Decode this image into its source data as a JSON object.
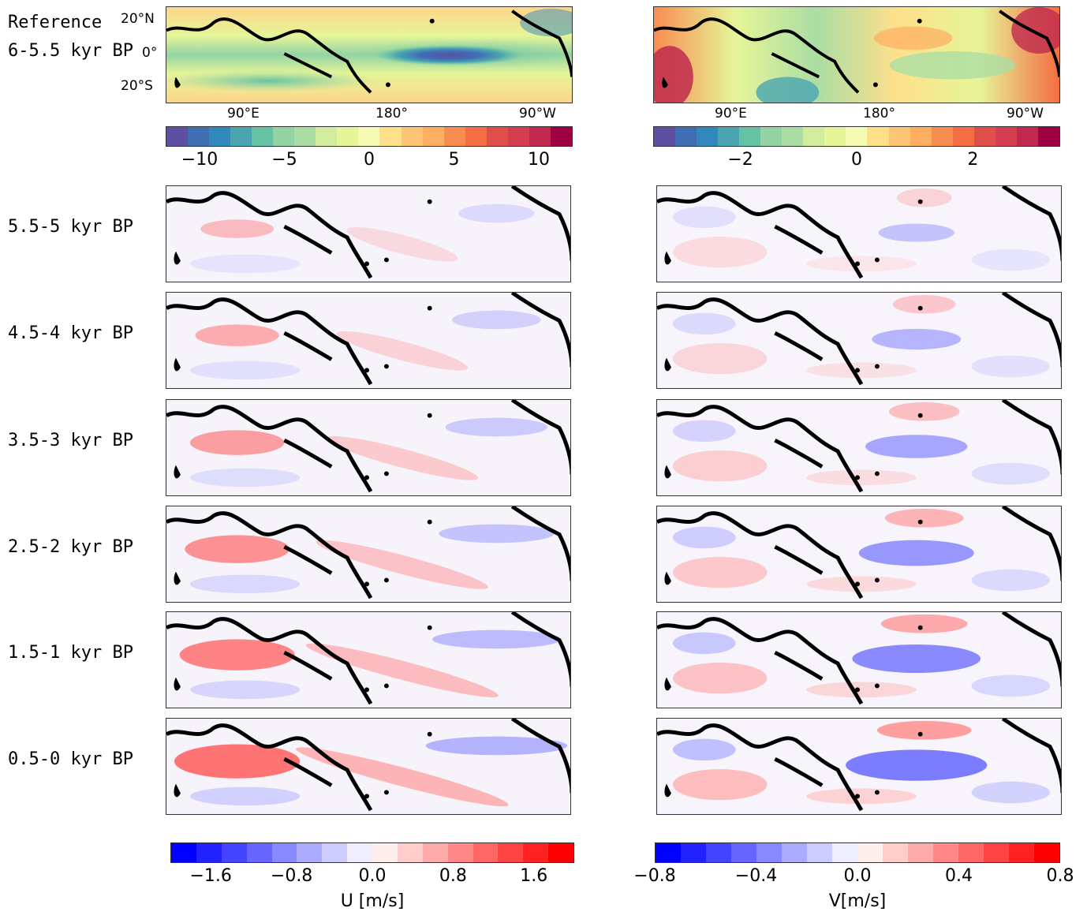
{
  "reference": {
    "label_line1": "Reference",
    "label_line2": "6-5.5 kyr BP",
    "lat_labels": [
      "20°N",
      "0°",
      "20°S"
    ],
    "lon_labels": [
      "90°E",
      "180°",
      "90°W"
    ]
  },
  "row_labels": [
    "5.5-5 kyr BP",
    "4.5-4 kyr BP",
    "3.5-3 kyr BP",
    "2.5-2 kyr BP",
    "1.5-1 kyr BP",
    "0.5-0 kyr BP"
  ],
  "colorbars": {
    "ref_u": {
      "ticks": [
        "−10",
        "−5",
        "0",
        "5",
        "10"
      ],
      "range": [
        -12,
        12
      ],
      "values": [
        -10,
        -5,
        0,
        5,
        10
      ]
    },
    "ref_v": {
      "ticks": [
        "−2",
        "0",
        "2"
      ],
      "range": [
        -3.5,
        3.5
      ],
      "values": [
        -2,
        0,
        2
      ]
    },
    "anom_u": {
      "ticks": [
        "−1.6",
        "−0.8",
        "0.0",
        "0.8",
        "1.6"
      ],
      "range": [
        -2.0,
        2.0
      ],
      "values": [
        -1.6,
        -0.8,
        0.0,
        0.8,
        1.6
      ],
      "title": "U [m/s]"
    },
    "anom_v": {
      "ticks": [
        "−0.8",
        "−0.4",
        "0.0",
        "0.4",
        "0.8"
      ],
      "range": [
        -0.8,
        0.8
      ],
      "values": [
        -0.8,
        -0.4,
        0.0,
        0.4,
        0.8
      ],
      "title": "V[m/s]"
    }
  },
  "colors": {
    "spectral": [
      "#5e4fa2",
      "#3f6eb4",
      "#3288bd",
      "#4aa5b1",
      "#66c2a5",
      "#94d4a4",
      "#abdda4",
      "#d1ec9c",
      "#e6f598",
      "#f5fbb2",
      "#fee08b",
      "#fdc475",
      "#fdae61",
      "#f88d52",
      "#f46d43",
      "#e0504a",
      "#d53e4f",
      "#c02a4e",
      "#9e0142"
    ],
    "bwr": [
      "#0000ff",
      "#2222ff",
      "#4444ff",
      "#6666ff",
      "#8888ff",
      "#aaaaff",
      "#ccccff",
      "#eeeeff",
      "#ffeeee",
      "#ffcccc",
      "#ffaaaa",
      "#ff8888",
      "#ff6666",
      "#ff4444",
      "#ff2222",
      "#ff0000"
    ]
  }
}
